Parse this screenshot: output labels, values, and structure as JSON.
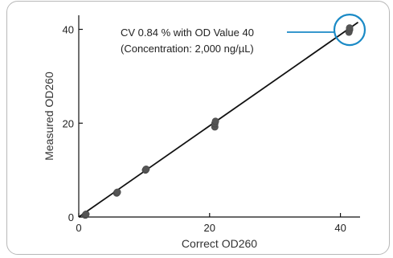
{
  "chart_data": {
    "type": "scatter",
    "title": "",
    "xlabel": "Correct OD260",
    "ylabel": "Measured OD260",
    "xlim": [
      0,
      43
    ],
    "ylim": [
      0,
      43
    ],
    "x_ticks": [
      0,
      20,
      40
    ],
    "y_ticks": [
      0,
      20,
      40
    ],
    "grid": false,
    "series": [
      {
        "points": [
          {
            "x": 1,
            "y": 0.4
          },
          {
            "x": 1.1,
            "y": 0.6
          },
          {
            "x": 5.8,
            "y": 5.1
          },
          {
            "x": 5.9,
            "y": 5.3
          },
          {
            "x": 10.2,
            "y": 10.0
          },
          {
            "x": 10.3,
            "y": 10.2
          },
          {
            "x": 20.8,
            "y": 19.2
          },
          {
            "x": 20.8,
            "y": 19.9
          },
          {
            "x": 20.9,
            "y": 20.4
          },
          {
            "x": 41.3,
            "y": 39.4
          },
          {
            "x": 41.4,
            "y": 39.9
          },
          {
            "x": 41.4,
            "y": 40.3
          }
        ]
      }
    ],
    "trendline": {
      "x": [
        0,
        42.7
      ],
      "y": [
        0,
        41.5
      ]
    },
    "annotation": {
      "line1": "CV 0.84 % with OD Value 40",
      "line2": "(Concentration: 2,000 ng/µL)",
      "target": {
        "x": 41.4,
        "y": 39.9
      }
    },
    "colors": {
      "points": "#555555",
      "line": "#111111",
      "highlight": "#1a8ac6",
      "axis": "#111111"
    }
  }
}
